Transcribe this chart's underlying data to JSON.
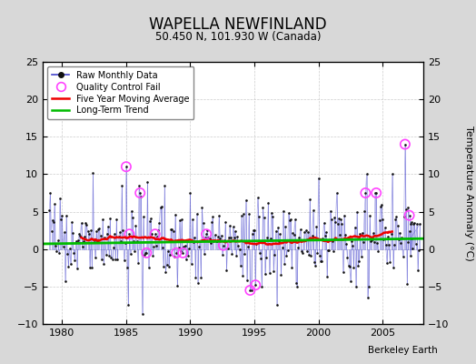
{
  "title": "WAPELLA NEWFINLAND",
  "subtitle": "50.450 N, 101.930 W (Canada)",
  "ylabel": "Temperature Anomaly (°C)",
  "credit": "Berkeley Earth",
  "xlim": [
    1978.5,
    2008.2
  ],
  "ylim": [
    -10,
    25
  ],
  "yticks_left": [
    -10,
    -5,
    0,
    5,
    10,
    15,
    20,
    25
  ],
  "yticks_right": [
    -10,
    -5,
    0,
    5,
    10,
    15,
    20,
    25
  ],
  "xticks": [
    1980,
    1985,
    1990,
    1995,
    2000,
    2005
  ],
  "bg_color": "#d8d8d8",
  "plot_bg_color": "#ffffff",
  "raw_line_color": "#4444cc",
  "raw_line_alpha": 0.45,
  "raw_dot_color": "#111111",
  "qc_fail_color": "#ff44ff",
  "moving_avg_color": "#ee0000",
  "trend_color": "#00bb00",
  "trend_x": [
    1978.5,
    2008.2
  ],
  "trend_y": [
    0.7,
    1.4
  ]
}
